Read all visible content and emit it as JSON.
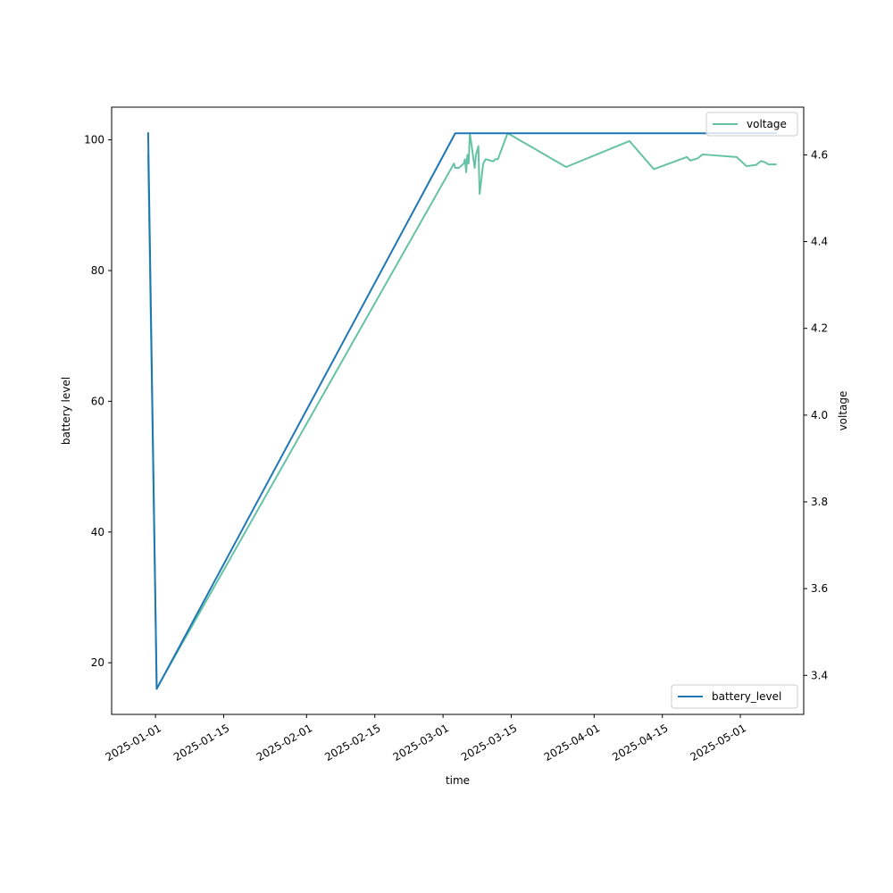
{
  "chart_data": {
    "type": "line",
    "xlabel": "time",
    "ylabel": "battery level",
    "y2label": "voltage",
    "x_tick_labels": [
      "2025-01-01",
      "2025-01-15",
      "2025-02-01",
      "2025-02-15",
      "2025-03-01",
      "2025-03-15",
      "2025-04-01",
      "2025-04-15",
      "2025-05-01"
    ],
    "y_ticks": [
      20,
      40,
      60,
      80,
      100
    ],
    "y2_ticks": [
      3.4,
      3.6,
      3.8,
      4.0,
      4.2,
      4.4,
      4.6
    ],
    "xlim": [
      "2024-12-23",
      "2025-05-14"
    ],
    "ylim": [
      12.1,
      105.0
    ],
    "y2lim": [
      3.31,
      4.71
    ],
    "grid": false,
    "series": [
      {
        "name": "battery_level",
        "axis": "left",
        "color": "#1f77b4",
        "legend_position": "lower-right",
        "points": [
          [
            "2024-12-30 12:00",
            101
          ],
          [
            "2025-01-01 06:00",
            16
          ],
          [
            "2025-03-03 12:00",
            101
          ],
          [
            "2025-05-08 06:00",
            101
          ]
        ]
      },
      {
        "name": "voltage",
        "axis": "right",
        "color": "#66c2a5",
        "legend_position": "upper-right",
        "points": [
          [
            "2024-12-30 12:00",
            4.6
          ],
          [
            "2025-01-01 06:00",
            3.37
          ],
          [
            "2025-03-03 06:00",
            4.58
          ],
          [
            "2025-03-03 12:00",
            4.57
          ],
          [
            "2025-03-04 06:00",
            4.57
          ],
          [
            "2025-03-05 06:00",
            4.58
          ],
          [
            "2025-03-05 12:00",
            4.59
          ],
          [
            "2025-03-05 18:00",
            4.56
          ],
          [
            "2025-03-06 00:00",
            4.6
          ],
          [
            "2025-03-06 06:00",
            4.58
          ],
          [
            "2025-03-06 12:00",
            4.65
          ],
          [
            "2025-03-07 12:00",
            4.57
          ],
          [
            "2025-03-07 18:00",
            4.6
          ],
          [
            "2025-03-08 06:00",
            4.62
          ],
          [
            "2025-03-08 12:00",
            4.51
          ],
          [
            "2025-03-09 06:00",
            4.58
          ],
          [
            "2025-03-09 18:00",
            4.59
          ],
          [
            "2025-03-11 06:00",
            4.585
          ],
          [
            "2025-03-11 18:00",
            4.59
          ],
          [
            "2025-03-12 06:00",
            4.59
          ],
          [
            "2025-03-14 06:00",
            4.65
          ],
          [
            "2025-03-26 06:00",
            4.572
          ],
          [
            "2025-04-08 06:00",
            4.632
          ],
          [
            "2025-04-13 06:00",
            4.567
          ],
          [
            "2025-04-20 00:00",
            4.595
          ],
          [
            "2025-04-20 18:00",
            4.587
          ],
          [
            "2025-04-22 06:00",
            4.592
          ],
          [
            "2025-04-23 06:00",
            4.601
          ],
          [
            "2025-04-30 06:00",
            4.595
          ],
          [
            "2025-05-02 06:00",
            4.574
          ],
          [
            "2025-05-04 06:00",
            4.577
          ],
          [
            "2025-05-05 06:00",
            4.586
          ],
          [
            "2025-05-06 06:00",
            4.582
          ],
          [
            "2025-05-06 18:00",
            4.578
          ],
          [
            "2025-05-08 06:00",
            4.578
          ]
        ]
      }
    ]
  }
}
